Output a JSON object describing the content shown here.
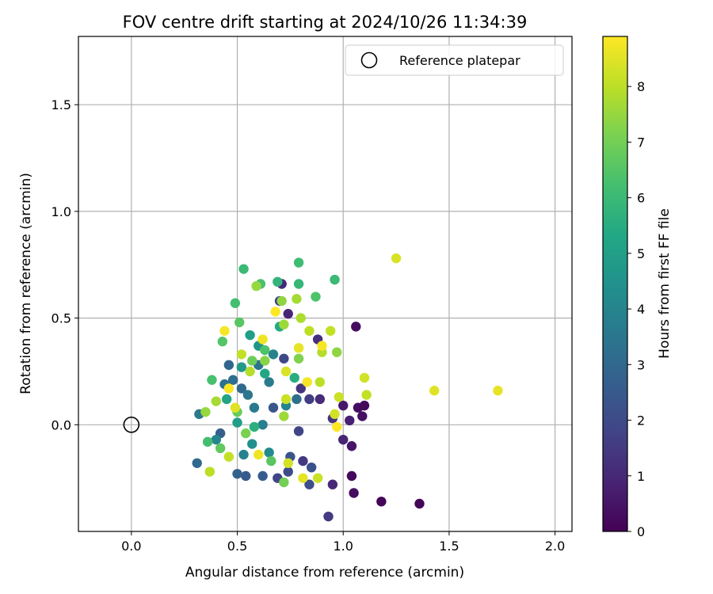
{
  "chart_data": {
    "type": "scatter",
    "title": "FOV centre drift starting at 2024/10/26 11:34:39",
    "xlabel": "Angular distance from reference (arcmin)",
    "ylabel": "Rotation from reference (arcmin)",
    "xlim": [
      -0.25,
      2.08
    ],
    "ylim": [
      -0.5,
      1.82
    ],
    "xticks": [
      0.0,
      0.5,
      1.0,
      1.5,
      2.0
    ],
    "xtick_labels": [
      "0.0",
      "0.5",
      "1.0",
      "1.5",
      "2.0"
    ],
    "yticks": [
      0.0,
      0.5,
      1.0,
      1.5
    ],
    "ytick_labels": [
      "0.0",
      "0.5",
      "1.0",
      "1.5"
    ],
    "grid": true,
    "legend": {
      "position": "top-right",
      "entries": [
        "Reference platepar"
      ]
    },
    "reference_point": {
      "x": 0.0,
      "y": 0.0,
      "label": "Reference platepar",
      "marker": "open-circle"
    },
    "colorbar": {
      "label": "Hours from first FF file",
      "colormap": "viridis",
      "min": 0,
      "max": 8.9,
      "ticks": [
        0,
        1,
        2,
        3,
        4,
        5,
        6,
        7,
        8
      ],
      "tick_labels": [
        "0",
        "1",
        "2",
        "3",
        "4",
        "5",
        "6",
        "7",
        "8"
      ]
    },
    "color_by": "hours",
    "series": [
      {
        "points": [
          {
            "x": 1.06,
            "y": 0.46,
            "hours": 0.3
          },
          {
            "x": 1.18,
            "y": -0.36,
            "hours": 0.1
          },
          {
            "x": 1.36,
            "y": -0.37,
            "hours": 0.1
          },
          {
            "x": 1.05,
            "y": -0.32,
            "hours": 0.3
          },
          {
            "x": 1.04,
            "y": -0.24,
            "hours": 0.2
          },
          {
            "x": 1.07,
            "y": 0.08,
            "hours": 0.3
          },
          {
            "x": 1.1,
            "y": 0.09,
            "hours": 0.2
          },
          {
            "x": 1.09,
            "y": 0.04,
            "hours": 0.4
          },
          {
            "x": 1.0,
            "y": 0.09,
            "hours": 0.6
          },
          {
            "x": 1.03,
            "y": 0.02,
            "hours": 0.8
          },
          {
            "x": 1.04,
            "y": -0.1,
            "hours": 0.5
          },
          {
            "x": 1.0,
            "y": -0.07,
            "hours": 0.9
          },
          {
            "x": 0.95,
            "y": -0.28,
            "hours": 1.0
          },
          {
            "x": 0.93,
            "y": -0.43,
            "hours": 1.5
          },
          {
            "x": 0.88,
            "y": 0.4,
            "hours": 1.2
          },
          {
            "x": 0.89,
            "y": 0.12,
            "hours": 1.1
          },
          {
            "x": 0.95,
            "y": 0.03,
            "hours": 1.3
          },
          {
            "x": 0.8,
            "y": 0.17,
            "hours": 1.4
          },
          {
            "x": 0.84,
            "y": 0.12,
            "hours": 1.6
          },
          {
            "x": 0.79,
            "y": -0.03,
            "hours": 1.8
          },
          {
            "x": 0.81,
            "y": -0.17,
            "hours": 1.5
          },
          {
            "x": 0.74,
            "y": 0.52,
            "hours": 0.9
          },
          {
            "x": 0.71,
            "y": 0.66,
            "hours": 1.0
          },
          {
            "x": 0.7,
            "y": 0.58,
            "hours": 1.7
          },
          {
            "x": 0.72,
            "y": 0.31,
            "hours": 1.9
          },
          {
            "x": 0.69,
            "y": -0.25,
            "hours": 1.8
          },
          {
            "x": 0.74,
            "y": -0.22,
            "hours": 2.0
          },
          {
            "x": 0.84,
            "y": -0.28,
            "hours": 2.1
          },
          {
            "x": 0.85,
            "y": -0.2,
            "hours": 2.2
          },
          {
            "x": 0.75,
            "y": -0.15,
            "hours": 2.3
          },
          {
            "x": 0.67,
            "y": 0.08,
            "hours": 2.4
          },
          {
            "x": 0.62,
            "y": -0.24,
            "hours": 2.6
          },
          {
            "x": 0.54,
            "y": -0.24,
            "hours": 2.5
          },
          {
            "x": 0.5,
            "y": -0.23,
            "hours": 2.8
          },
          {
            "x": 0.31,
            "y": -0.18,
            "hours": 3.0
          },
          {
            "x": 0.42,
            "y": -0.04,
            "hours": 2.7
          },
          {
            "x": 0.46,
            "y": 0.28,
            "hours": 2.9
          },
          {
            "x": 0.48,
            "y": 0.21,
            "hours": 3.2
          },
          {
            "x": 0.52,
            "y": 0.17,
            "hours": 3.1
          },
          {
            "x": 0.44,
            "y": 0.19,
            "hours": 3.3
          },
          {
            "x": 0.55,
            "y": 0.14,
            "hours": 3.5
          },
          {
            "x": 0.6,
            "y": 0.28,
            "hours": 3.4
          },
          {
            "x": 0.58,
            "y": 0.08,
            "hours": 3.6
          },
          {
            "x": 0.62,
            "y": 0.0,
            "hours": 3.8
          },
          {
            "x": 0.65,
            "y": 0.2,
            "hours": 3.7
          },
          {
            "x": 0.67,
            "y": 0.33,
            "hours": 3.9
          },
          {
            "x": 0.73,
            "y": 0.09,
            "hours": 4.0
          },
          {
            "x": 0.78,
            "y": 0.12,
            "hours": 3.2
          },
          {
            "x": 0.32,
            "y": 0.05,
            "hours": 3.6
          },
          {
            "x": 0.4,
            "y": -0.07,
            "hours": 4.1
          },
          {
            "x": 0.53,
            "y": -0.14,
            "hours": 3.9
          },
          {
            "x": 0.57,
            "y": -0.09,
            "hours": 4.4
          },
          {
            "x": 0.65,
            "y": -0.13,
            "hours": 4.2
          },
          {
            "x": 0.6,
            "y": 0.37,
            "hours": 4.6
          },
          {
            "x": 0.52,
            "y": 0.27,
            "hours": 4.8
          },
          {
            "x": 0.56,
            "y": 0.42,
            "hours": 5.0
          },
          {
            "x": 0.63,
            "y": 0.24,
            "hours": 5.3
          },
          {
            "x": 0.5,
            "y": 0.01,
            "hours": 4.9
          },
          {
            "x": 0.45,
            "y": 0.12,
            "hours": 5.2
          },
          {
            "x": 0.7,
            "y": 0.46,
            "hours": 5.4
          },
          {
            "x": 0.77,
            "y": 0.22,
            "hours": 5.5
          },
          {
            "x": 0.58,
            "y": -0.01,
            "hours": 5.6
          },
          {
            "x": 0.69,
            "y": 0.67,
            "hours": 5.8
          },
          {
            "x": 0.53,
            "y": 0.73,
            "hours": 6.0
          },
          {
            "x": 0.79,
            "y": 0.76,
            "hours": 6.1
          },
          {
            "x": 0.79,
            "y": 0.66,
            "hours": 5.9
          },
          {
            "x": 0.96,
            "y": 0.68,
            "hours": 6.0
          },
          {
            "x": 0.61,
            "y": 0.66,
            "hours": 6.3
          },
          {
            "x": 0.49,
            "y": 0.57,
            "hours": 6.2
          },
          {
            "x": 0.87,
            "y": 0.6,
            "hours": 6.4
          },
          {
            "x": 0.43,
            "y": 0.39,
            "hours": 6.5
          },
          {
            "x": 0.51,
            "y": 0.48,
            "hours": 6.6
          },
          {
            "x": 0.63,
            "y": 0.35,
            "hours": 6.4
          },
          {
            "x": 0.38,
            "y": 0.21,
            "hours": 6.3
          },
          {
            "x": 0.36,
            "y": -0.08,
            "hours": 6.2
          },
          {
            "x": 0.42,
            "y": -0.11,
            "hours": 6.7
          },
          {
            "x": 0.5,
            "y": 0.06,
            "hours": 6.8
          },
          {
            "x": 0.57,
            "y": 0.3,
            "hours": 6.9
          },
          {
            "x": 0.66,
            "y": -0.17,
            "hours": 6.6
          },
          {
            "x": 0.72,
            "y": -0.27,
            "hours": 7.0
          },
          {
            "x": 0.54,
            "y": -0.04,
            "hours": 7.1
          },
          {
            "x": 0.63,
            "y": 0.3,
            "hours": 7.3
          },
          {
            "x": 0.71,
            "y": 0.58,
            "hours": 7.4
          },
          {
            "x": 0.59,
            "y": 0.65,
            "hours": 7.5
          },
          {
            "x": 0.78,
            "y": 0.59,
            "hours": 7.7
          },
          {
            "x": 0.8,
            "y": 0.5,
            "hours": 7.8
          },
          {
            "x": 0.84,
            "y": 0.44,
            "hours": 8.0
          },
          {
            "x": 0.72,
            "y": 0.04,
            "hours": 7.6
          },
          {
            "x": 0.79,
            "y": 0.31,
            "hours": 7.2
          },
          {
            "x": 0.9,
            "y": 0.34,
            "hours": 7.9
          },
          {
            "x": 0.97,
            "y": 0.34,
            "hours": 7.4
          },
          {
            "x": 0.94,
            "y": 0.44,
            "hours": 8.1
          },
          {
            "x": 0.89,
            "y": 0.2,
            "hours": 8.0
          },
          {
            "x": 0.98,
            "y": 0.13,
            "hours": 8.2
          },
          {
            "x": 1.1,
            "y": 0.22,
            "hours": 8.3
          },
          {
            "x": 1.11,
            "y": 0.14,
            "hours": 8.1
          },
          {
            "x": 1.25,
            "y": 0.78,
            "hours": 8.4
          },
          {
            "x": 1.43,
            "y": 0.16,
            "hours": 8.5
          },
          {
            "x": 1.73,
            "y": 0.16,
            "hours": 8.6
          },
          {
            "x": 0.37,
            "y": -0.22,
            "hours": 8.0
          },
          {
            "x": 0.46,
            "y": -0.15,
            "hours": 8.1
          },
          {
            "x": 0.81,
            "y": -0.25,
            "hours": 8.6
          },
          {
            "x": 0.88,
            "y": -0.25,
            "hours": 8.2
          },
          {
            "x": 0.74,
            "y": -0.18,
            "hours": 8.3
          },
          {
            "x": 0.6,
            "y": -0.14,
            "hours": 8.7
          },
          {
            "x": 0.44,
            "y": 0.44,
            "hours": 8.8
          },
          {
            "x": 0.62,
            "y": 0.4,
            "hours": 8.7
          },
          {
            "x": 0.68,
            "y": 0.53,
            "hours": 8.9
          },
          {
            "x": 0.79,
            "y": 0.36,
            "hours": 8.6
          },
          {
            "x": 0.9,
            "y": 0.37,
            "hours": 8.8
          },
          {
            "x": 0.46,
            "y": 0.17,
            "hours": 8.9
          },
          {
            "x": 0.49,
            "y": 0.08,
            "hours": 8.5
          },
          {
            "x": 0.73,
            "y": 0.25,
            "hours": 8.4
          },
          {
            "x": 0.83,
            "y": 0.2,
            "hours": 8.8
          },
          {
            "x": 0.97,
            "y": -0.01,
            "hours": 8.9
          },
          {
            "x": 0.96,
            "y": 0.05,
            "hours": 8.3
          },
          {
            "x": 0.73,
            "y": 0.12,
            "hours": 8.2
          },
          {
            "x": 0.56,
            "y": 0.25,
            "hours": 7.9
          },
          {
            "x": 0.52,
            "y": 0.33,
            "hours": 8.1
          },
          {
            "x": 0.72,
            "y": 0.47,
            "hours": 7.6
          },
          {
            "x": 0.4,
            "y": 0.11,
            "hours": 7.7
          },
          {
            "x": 0.35,
            "y": 0.06,
            "hours": 7.5
          }
        ]
      }
    ]
  }
}
